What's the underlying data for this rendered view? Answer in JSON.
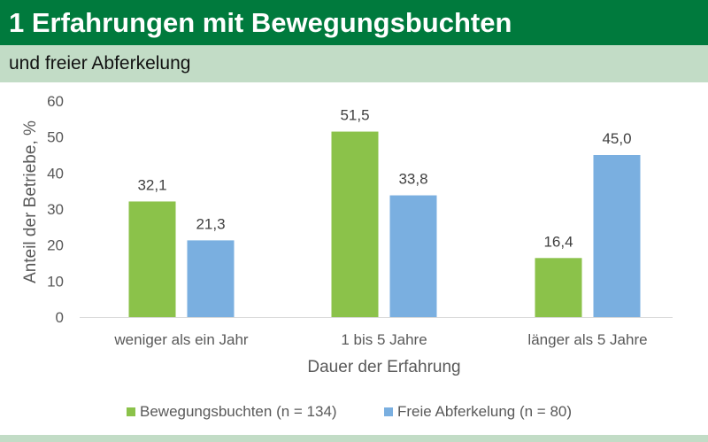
{
  "header": {
    "title": "1 Erfahrungen mit Bewegungsbuchten",
    "subtitle": "und freier Abferkelung"
  },
  "colors": {
    "header_bg": "#007a3d",
    "subheader_bg": "#c2dcc6",
    "series_1": "#8bc24a",
    "series_2": "#7aafe0"
  },
  "chart_data": {
    "type": "bar",
    "categories": [
      "weniger als ein Jahr",
      "1 bis 5 Jahre",
      "länger als 5 Jahre"
    ],
    "series": [
      {
        "name": "Bewegungsbuchten (n = 134)",
        "values": [
          32.1,
          51.5,
          16.4
        ],
        "labels": [
          "32,1",
          "51,5",
          "16,4"
        ]
      },
      {
        "name": "Freie Abferkelung (n = 80)",
        "values": [
          21.3,
          33.8,
          45.0
        ],
        "labels": [
          "21,3",
          "33,8",
          "45,0"
        ]
      }
    ],
    "xlabel": "Dauer der Erfahrung",
    "ylabel": "Anteil der Betriebe, %",
    "ylim": [
      0,
      60
    ],
    "yticks": [
      0,
      10,
      20,
      30,
      40,
      50,
      60
    ],
    "grid": false,
    "legend": "bottom"
  }
}
